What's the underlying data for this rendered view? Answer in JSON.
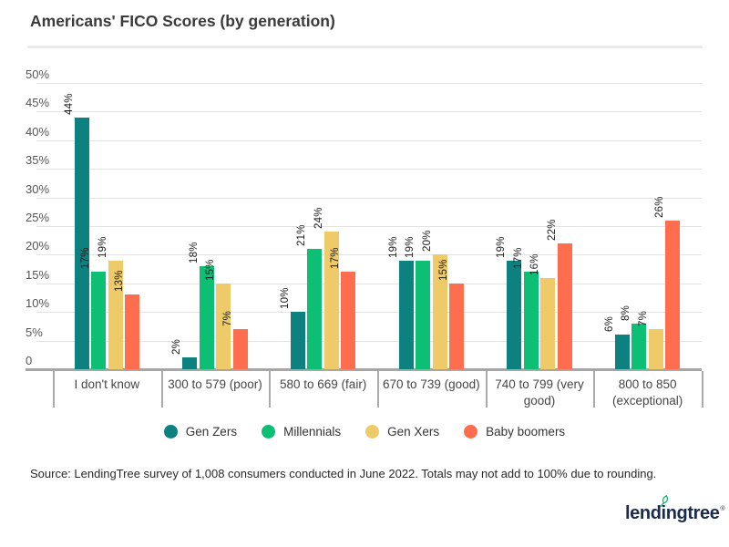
{
  "title": "Americans' FICO Scores (by generation)",
  "chart_data": {
    "type": "bar",
    "title": "Americans' FICO Scores (by generation)",
    "categories": [
      "I don't know",
      "300 to 579 (poor)",
      "580 to 669 (fair)",
      "670 to 739 (good)",
      "740 to 799 (very good)",
      "800 to 850 (exceptional)"
    ],
    "series": [
      {
        "name": "Gen Zers",
        "color": "#0d8080",
        "values": [
          44,
          2,
          10,
          19,
          19,
          6
        ]
      },
      {
        "name": "Millennials",
        "color": "#0cbf75",
        "values": [
          17,
          18,
          21,
          19,
          17,
          8
        ]
      },
      {
        "name": "Gen Xers",
        "color": "#eeca68",
        "values": [
          19,
          15,
          24,
          20,
          16,
          7
        ]
      },
      {
        "name": "Baby boomers",
        "color": "#fe6d4d",
        "values": [
          13,
          7,
          17,
          15,
          22,
          26
        ]
      }
    ],
    "value_suffix": "%",
    "y_axis": {
      "min": 0,
      "max": 50,
      "step": 5,
      "ticks": [
        "0",
        "5%",
        "10%",
        "15%",
        "20%",
        "25%",
        "30%",
        "35%",
        "40%",
        "45%",
        "50%"
      ]
    },
    "grid": true,
    "legend_position": "bottom",
    "value_labels_rotated": true
  },
  "source": "Source: LendingTree survey of 1,008 consumers conducted in June 2022. Totals may not add to 100% due to rounding.",
  "logo": {
    "part1": "lend",
    "part2": "i",
    "part3": "ngtree",
    "registered": "®",
    "text": "lendingtree"
  }
}
